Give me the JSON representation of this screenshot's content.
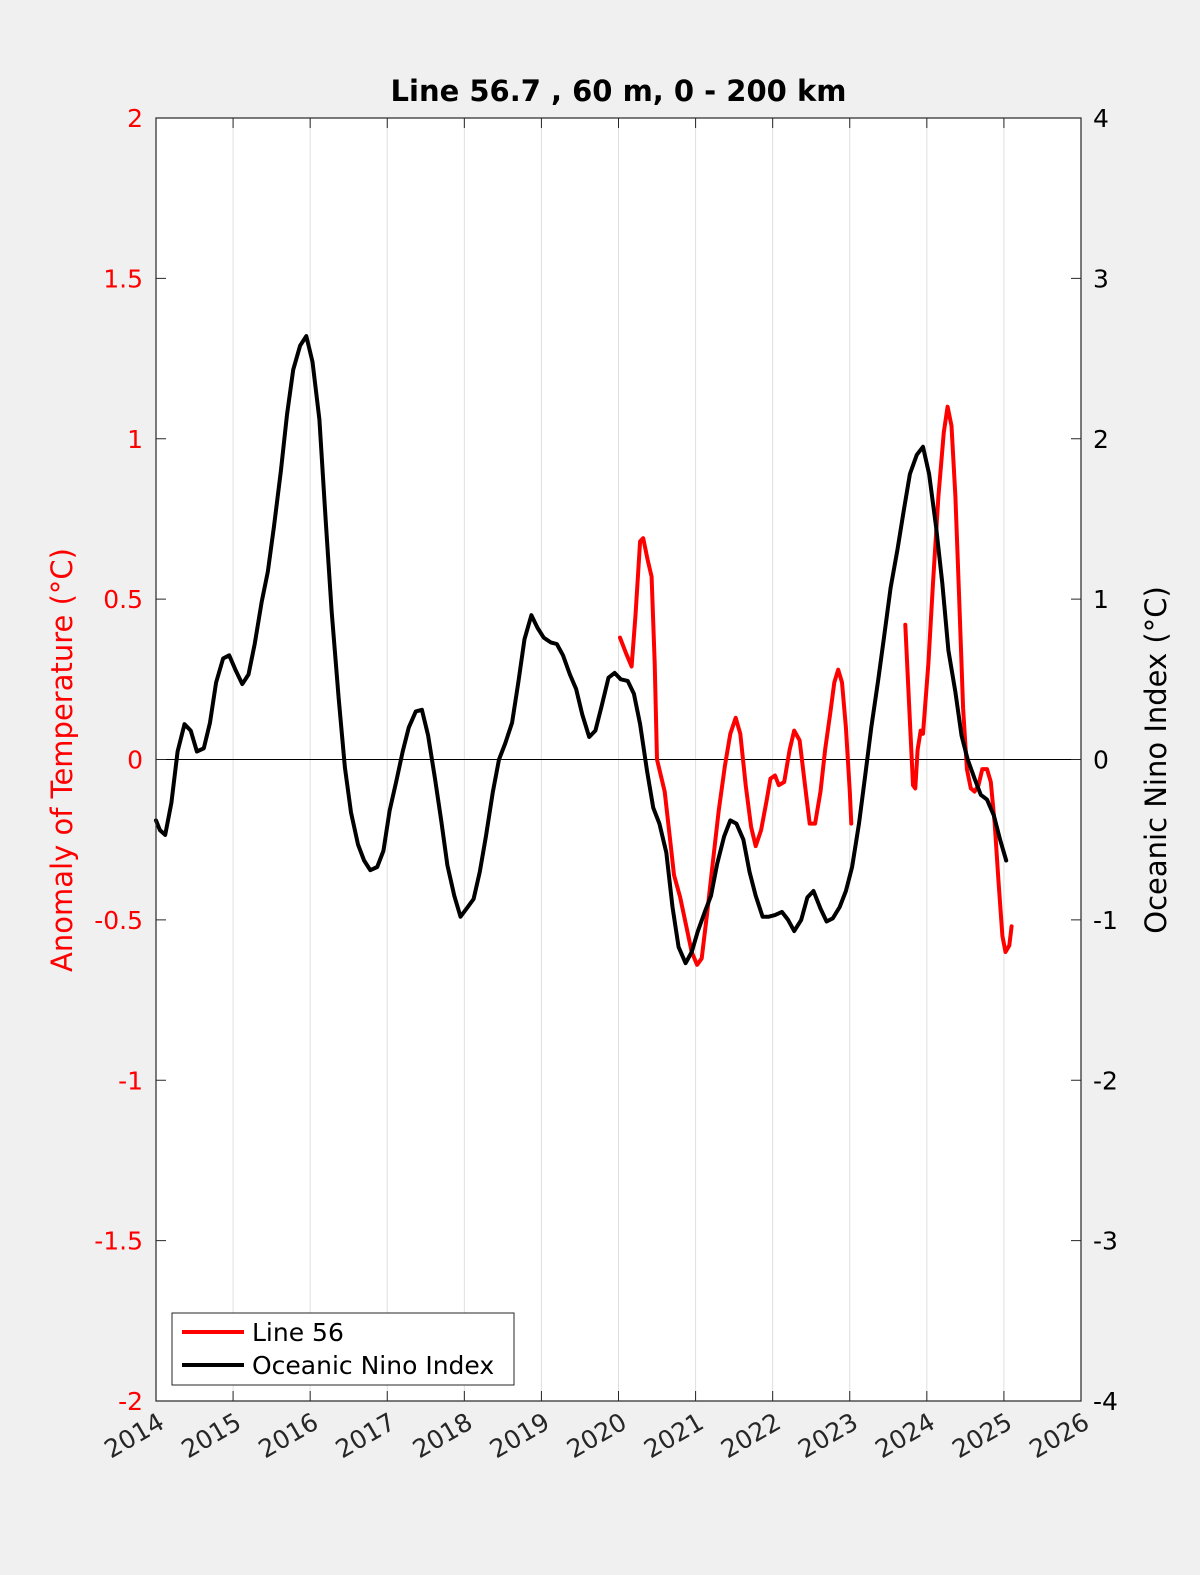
{
  "chart_data": {
    "type": "line",
    "title": "Line 56.7 , 60 m, 0 - 200 km",
    "xlabel": "",
    "ylabel": "Anomaly of Temperature (°C)",
    "y2label": "Oceanic Nino Index (°C)",
    "xlim": [
      2014,
      2026
    ],
    "ylim": [
      -2,
      2
    ],
    "y2lim": [
      -4,
      4
    ],
    "x_ticks": [
      "2014",
      "2015",
      "2016",
      "2017",
      "2018",
      "2019",
      "2020",
      "2021",
      "2022",
      "2023",
      "2024",
      "2025",
      "2026"
    ],
    "y_ticks": [
      "-2",
      "-1.5",
      "-1",
      "-0.5",
      "0",
      "0.5",
      "1",
      "1.5",
      "2"
    ],
    "y2_ticks": [
      "-4",
      "-3",
      "-2",
      "-1",
      "0",
      "1",
      "2",
      "3",
      "4"
    ],
    "grid": "vertical",
    "zero_line": true,
    "legend_position": "bottom-left",
    "colors": {
      "line56": "#ff0000",
      "oni": "#000000",
      "left_axis": "#ff0000",
      "right_axis": "#000000"
    },
    "series": [
      {
        "name": "Line 56",
        "axis": "left",
        "color": "#ff0000",
        "segments": [
          [
            [
              2020.02,
              0.38
            ],
            [
              2020.1,
              0.33
            ],
            [
              2020.17,
              0.29
            ],
            [
              2020.22,
              0.45
            ],
            [
              2020.28,
              0.68
            ],
            [
              2020.32,
              0.69
            ],
            [
              2020.38,
              0.62
            ],
            [
              2020.43,
              0.57
            ],
            [
              2020.47,
              0.3
            ],
            [
              2020.5,
              0.0
            ],
            [
              2020.6,
              -0.1
            ],
            [
              2020.67,
              -0.25
            ],
            [
              2020.72,
              -0.36
            ],
            [
              2020.8,
              -0.43
            ],
            [
              2020.88,
              -0.52
            ],
            [
              2020.95,
              -0.6
            ],
            [
              2021.02,
              -0.64
            ],
            [
              2021.08,
              -0.62
            ],
            [
              2021.15,
              -0.48
            ],
            [
              2021.22,
              -0.33
            ],
            [
              2021.3,
              -0.16
            ],
            [
              2021.38,
              -0.02
            ],
            [
              2021.45,
              0.08
            ],
            [
              2021.52,
              0.13
            ],
            [
              2021.58,
              0.08
            ],
            [
              2021.65,
              -0.08
            ],
            [
              2021.72,
              -0.21
            ],
            [
              2021.78,
              -0.27
            ],
            [
              2021.85,
              -0.22
            ],
            [
              2021.92,
              -0.13
            ],
            [
              2021.97,
              -0.06
            ],
            [
              2022.03,
              -0.05
            ],
            [
              2022.08,
              -0.08
            ],
            [
              2022.15,
              -0.07
            ],
            [
              2022.22,
              0.03
            ],
            [
              2022.28,
              0.09
            ],
            [
              2022.35,
              0.06
            ],
            [
              2022.42,
              -0.08
            ],
            [
              2022.48,
              -0.2
            ],
            [
              2022.55,
              -0.2
            ],
            [
              2022.62,
              -0.1
            ],
            [
              2022.68,
              0.03
            ],
            [
              2022.75,
              0.15
            ],
            [
              2022.8,
              0.24
            ],
            [
              2022.85,
              0.28
            ],
            [
              2022.9,
              0.24
            ],
            [
              2022.95,
              0.1
            ],
            [
              2023.0,
              -0.1
            ],
            [
              2023.02,
              -0.2
            ]
          ],
          [
            [
              2023.72,
              0.42
            ],
            [
              2023.78,
              0.12
            ],
            [
              2023.82,
              -0.08
            ],
            [
              2023.85,
              -0.09
            ],
            [
              2023.88,
              0.03
            ],
            [
              2023.92,
              0.09
            ],
            [
              2023.95,
              0.08
            ],
            [
              2024.02,
              0.3
            ],
            [
              2024.08,
              0.55
            ],
            [
              2024.15,
              0.82
            ],
            [
              2024.22,
              1.02
            ],
            [
              2024.27,
              1.1
            ],
            [
              2024.32,
              1.04
            ],
            [
              2024.37,
              0.82
            ],
            [
              2024.42,
              0.5
            ],
            [
              2024.47,
              0.16
            ],
            [
              2024.52,
              -0.03
            ],
            [
              2024.57,
              -0.09
            ],
            [
              2024.62,
              -0.1
            ],
            [
              2024.67,
              -0.08
            ],
            [
              2024.72,
              -0.03
            ],
            [
              2024.78,
              -0.03
            ],
            [
              2024.83,
              -0.07
            ],
            [
              2024.88,
              -0.2
            ],
            [
              2024.93,
              -0.38
            ],
            [
              2024.98,
              -0.55
            ],
            [
              2025.02,
              -0.6
            ],
            [
              2025.07,
              -0.58
            ],
            [
              2025.1,
              -0.52
            ]
          ]
        ]
      },
      {
        "name": "Oceanic Nino Index",
        "axis": "right",
        "color": "#000000",
        "segments": [
          [
            [
              2014.0,
              -0.38
            ],
            [
              2014.05,
              -0.44
            ],
            [
              2014.12,
              -0.47
            ],
            [
              2014.2,
              -0.27
            ],
            [
              2014.28,
              0.05
            ],
            [
              2014.37,
              0.22
            ],
            [
              2014.45,
              0.18
            ],
            [
              2014.53,
              0.05
            ],
            [
              2014.62,
              0.07
            ],
            [
              2014.7,
              0.23
            ],
            [
              2014.78,
              0.48
            ],
            [
              2014.87,
              0.63
            ],
            [
              2014.95,
              0.65
            ],
            [
              2015.03,
              0.56
            ],
            [
              2015.12,
              0.47
            ],
            [
              2015.2,
              0.53
            ],
            [
              2015.28,
              0.72
            ],
            [
              2015.37,
              0.98
            ],
            [
              2015.45,
              1.17
            ],
            [
              2015.53,
              1.45
            ],
            [
              2015.62,
              1.8
            ],
            [
              2015.7,
              2.15
            ],
            [
              2015.78,
              2.43
            ],
            [
              2015.87,
              2.58
            ],
            [
              2015.95,
              2.64
            ],
            [
              2016.03,
              2.48
            ],
            [
              2016.12,
              2.12
            ],
            [
              2016.2,
              1.5
            ],
            [
              2016.28,
              0.92
            ],
            [
              2016.37,
              0.38
            ],
            [
              2016.45,
              -0.05
            ],
            [
              2016.53,
              -0.33
            ],
            [
              2016.62,
              -0.53
            ],
            [
              2016.7,
              -0.63
            ],
            [
              2016.78,
              -0.69
            ],
            [
              2016.87,
              -0.67
            ],
            [
              2016.95,
              -0.57
            ],
            [
              2017.03,
              -0.32
            ],
            [
              2017.12,
              -0.13
            ],
            [
              2017.2,
              0.05
            ],
            [
              2017.28,
              0.2
            ],
            [
              2017.37,
              0.3
            ],
            [
              2017.45,
              0.31
            ],
            [
              2017.53,
              0.15
            ],
            [
              2017.62,
              -0.12
            ],
            [
              2017.7,
              -0.38
            ],
            [
              2017.78,
              -0.66
            ],
            [
              2017.87,
              -0.85
            ],
            [
              2017.95,
              -0.98
            ],
            [
              2018.03,
              -0.93
            ],
            [
              2018.12,
              -0.87
            ],
            [
              2018.2,
              -0.7
            ],
            [
              2018.28,
              -0.48
            ],
            [
              2018.37,
              -0.2
            ],
            [
              2018.45,
              0.0
            ],
            [
              2018.53,
              0.1
            ],
            [
              2018.62,
              0.23
            ],
            [
              2018.7,
              0.48
            ],
            [
              2018.78,
              0.75
            ],
            [
              2018.87,
              0.9
            ],
            [
              2018.95,
              0.82
            ],
            [
              2019.03,
              0.76
            ],
            [
              2019.12,
              0.73
            ],
            [
              2019.2,
              0.72
            ],
            [
              2019.28,
              0.65
            ],
            [
              2019.37,
              0.53
            ],
            [
              2019.45,
              0.44
            ],
            [
              2019.53,
              0.28
            ],
            [
              2019.62,
              0.14
            ],
            [
              2019.7,
              0.18
            ],
            [
              2019.78,
              0.33
            ],
            [
              2019.87,
              0.51
            ],
            [
              2019.95,
              0.54
            ],
            [
              2020.03,
              0.5
            ],
            [
              2020.12,
              0.49
            ],
            [
              2020.2,
              0.41
            ],
            [
              2020.28,
              0.22
            ],
            [
              2020.37,
              -0.07
            ],
            [
              2020.45,
              -0.3
            ],
            [
              2020.53,
              -0.4
            ],
            [
              2020.62,
              -0.58
            ],
            [
              2020.7,
              -0.92
            ],
            [
              2020.78,
              -1.17
            ],
            [
              2020.87,
              -1.27
            ],
            [
              2020.95,
              -1.2
            ],
            [
              2021.03,
              -1.07
            ],
            [
              2021.12,
              -0.95
            ],
            [
              2021.2,
              -0.85
            ],
            [
              2021.28,
              -0.65
            ],
            [
              2021.37,
              -0.48
            ],
            [
              2021.45,
              -0.38
            ],
            [
              2021.53,
              -0.4
            ],
            [
              2021.62,
              -0.5
            ],
            [
              2021.7,
              -0.7
            ],
            [
              2021.78,
              -0.85
            ],
            [
              2021.87,
              -0.98
            ],
            [
              2021.95,
              -0.98
            ],
            [
              2022.03,
              -0.97
            ],
            [
              2022.12,
              -0.95
            ],
            [
              2022.2,
              -1.0
            ],
            [
              2022.28,
              -1.07
            ],
            [
              2022.37,
              -1.0
            ],
            [
              2022.45,
              -0.86
            ],
            [
              2022.53,
              -0.82
            ],
            [
              2022.62,
              -0.93
            ],
            [
              2022.7,
              -1.01
            ],
            [
              2022.78,
              -0.99
            ],
            [
              2022.87,
              -0.92
            ],
            [
              2022.95,
              -0.82
            ],
            [
              2023.03,
              -0.67
            ],
            [
              2023.12,
              -0.4
            ],
            [
              2023.2,
              -0.1
            ],
            [
              2023.28,
              0.2
            ],
            [
              2023.37,
              0.5
            ],
            [
              2023.45,
              0.78
            ],
            [
              2023.53,
              1.07
            ],
            [
              2023.62,
              1.31
            ],
            [
              2023.7,
              1.55
            ],
            [
              2023.78,
              1.78
            ],
            [
              2023.87,
              1.9
            ],
            [
              2023.95,
              1.95
            ],
            [
              2024.03,
              1.78
            ],
            [
              2024.12,
              1.45
            ],
            [
              2024.2,
              1.1
            ],
            [
              2024.28,
              0.68
            ],
            [
              2024.37,
              0.42
            ],
            [
              2024.45,
              0.15
            ],
            [
              2024.53,
              0.0
            ],
            [
              2024.62,
              -0.12
            ],
            [
              2024.7,
              -0.22
            ],
            [
              2024.78,
              -0.25
            ],
            [
              2024.87,
              -0.35
            ],
            [
              2024.95,
              -0.5
            ],
            [
              2025.03,
              -0.63
            ]
          ]
        ]
      }
    ]
  }
}
